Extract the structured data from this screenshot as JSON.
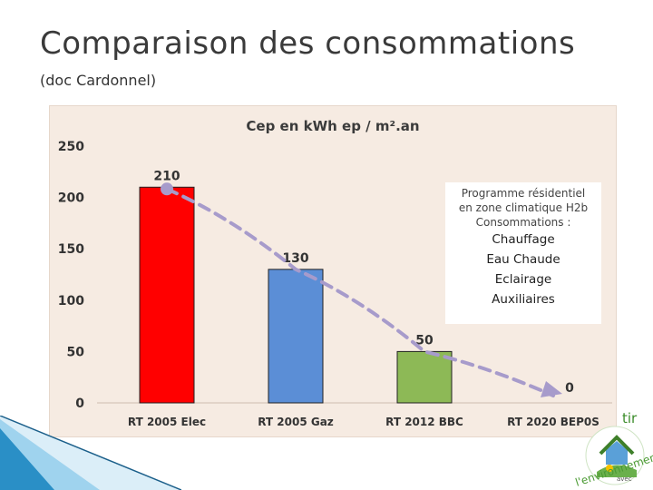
{
  "slide": {
    "title": "Comparaison des consommations",
    "subtitle": "(doc Cardonnel)"
  },
  "note": {
    "lines_small": [
      "Programme résidentiel",
      "en zone climatique H2b",
      "Consommations :"
    ],
    "lines_big": [
      "Chauffage",
      "Eau Chaude",
      "Eclairage",
      "Auxiliaires"
    ]
  },
  "logo": {
    "text_top": "tir",
    "text_main": "l'environnement",
    "text_small": "avec"
  },
  "colors": {
    "bar_elec": "#ff0000",
    "bar_gaz": "#5b8ed6",
    "bar_bbc": "#8db956",
    "trend": "#a79bcb",
    "chart_bg": "#f6ebe2"
  },
  "chart_data": {
    "type": "bar",
    "title": "Cep en kWh ep / m².an",
    "categories": [
      "RT 2005 Elec",
      "RT 2005 Gaz",
      "RT 2012 BBC",
      "RT 2020 BEP0S"
    ],
    "values": [
      210,
      130,
      50,
      0
    ],
    "value_labels": [
      "210",
      "130",
      "50",
      "0"
    ],
    "ylim": [
      0,
      250
    ],
    "yticks": [
      0,
      50,
      100,
      150,
      200,
      250
    ],
    "xlabel": "",
    "ylabel": "",
    "trend_line": {
      "style": "dashed-arrow",
      "values": [
        210,
        130,
        50,
        0
      ]
    }
  }
}
